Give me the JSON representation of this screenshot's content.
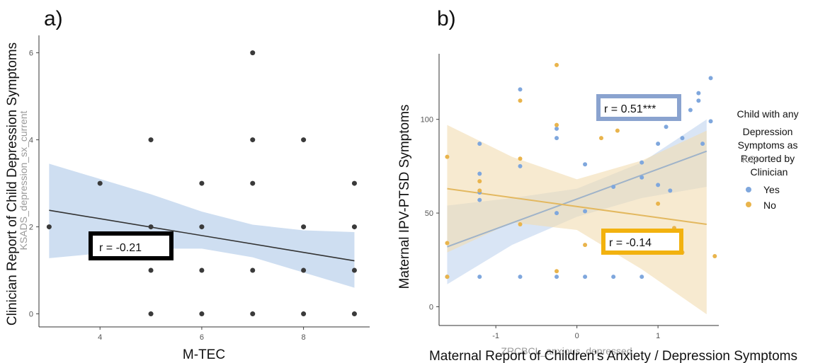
{
  "colors": {
    "panel_a_point": "#3a3a3a",
    "panel_a_band": "#c6d8ef",
    "panel_a_line": "#333333",
    "yes": "#7fa7dd",
    "yes_band": "#bfd3ef",
    "yes_line": "#9fb3c9",
    "no": "#e9b44c",
    "no_band": "#f1dcb0",
    "no_line": "#e3b85f",
    "box_a": "#000000",
    "box_blue": "#8aa3cf",
    "box_orange": "#f2b20f"
  },
  "chart_data": [
    {
      "type": "scatter",
      "panel_label": "a)",
      "xlabel": "M-TEC",
      "ylabel": "Clinician Report of Child Depression Symptoms",
      "ghost_ylabel": "KSADS_depression_sx_current",
      "xlim": [
        2.8,
        9.3
      ],
      "ylim": [
        -0.3,
        6.4
      ],
      "xticks": [
        "4",
        "6",
        "8"
      ],
      "yticks": [
        "0",
        "2",
        "4",
        "6"
      ],
      "grid": false,
      "points": [
        [
          3,
          2
        ],
        [
          4,
          3
        ],
        [
          5,
          0
        ],
        [
          5,
          1
        ],
        [
          5,
          2
        ],
        [
          5,
          4
        ],
        [
          6,
          0
        ],
        [
          6,
          1
        ],
        [
          6,
          2
        ],
        [
          6,
          3
        ],
        [
          7,
          0
        ],
        [
          7,
          1
        ],
        [
          7,
          3
        ],
        [
          7,
          4
        ],
        [
          7,
          6
        ],
        [
          8,
          0
        ],
        [
          8,
          1
        ],
        [
          8,
          2
        ],
        [
          8,
          4
        ],
        [
          9,
          0
        ],
        [
          9,
          1
        ],
        [
          9,
          2
        ],
        [
          9,
          3
        ]
      ],
      "fit_line": [
        [
          3,
          2.38
        ],
        [
          9,
          1.22
        ]
      ],
      "band_upper": [
        [
          3,
          3.45
        ],
        [
          5,
          2.75
        ],
        [
          6,
          2.35
        ],
        [
          7,
          2.05
        ],
        [
          8,
          1.92
        ],
        [
          9,
          1.88
        ]
      ],
      "band_lower": [
        [
          3,
          1.28
        ],
        [
          5,
          1.5
        ],
        [
          6,
          1.5
        ],
        [
          7,
          1.3
        ],
        [
          8,
          0.95
        ],
        [
          9,
          0.6
        ]
      ],
      "annotation": "r = -0.21"
    },
    {
      "type": "scatter",
      "panel_label": "b)",
      "xlabel": "Maternal Report of Children's Anxiety / Depression Symptoms",
      "ghost_xlabel": "ZRCBCL_anxious_depressed",
      "ylabel": "Maternal IPV-PTSD Symptoms",
      "xlim": [
        -1.7,
        1.75
      ],
      "ylim": [
        -10,
        135
      ],
      "xticks": [
        "-1",
        "0",
        "1"
      ],
      "yticks": [
        "0",
        "50",
        "100"
      ],
      "grid": false,
      "legend": {
        "title": "Child with any Depression Symptoms as Reported by Clinician",
        "ghost_title": "KSI",
        "position": "right"
      },
      "series": [
        {
          "name": "Yes",
          "points": [
            [
              -1.6,
              16
            ],
            [
              -1.2,
              16
            ],
            [
              -1.2,
              71
            ],
            [
              -1.2,
              87
            ],
            [
              -1.2,
              61
            ],
            [
              -1.2,
              57
            ],
            [
              -0.7,
              75
            ],
            [
              -0.7,
              116
            ],
            [
              -0.7,
              16
            ],
            [
              -0.25,
              95
            ],
            [
              -0.25,
              90
            ],
            [
              -0.25,
              50
            ],
            [
              -0.25,
              16
            ],
            [
              0.1,
              76
            ],
            [
              0.1,
              51
            ],
            [
              0.1,
              16
            ],
            [
              0.45,
              64
            ],
            [
              0.45,
              16
            ],
            [
              0.8,
              77
            ],
            [
              0.8,
              69
            ],
            [
              0.8,
              16
            ],
            [
              1.0,
              87
            ],
            [
              1.0,
              65
            ],
            [
              1.1,
              96
            ],
            [
              1.15,
              62
            ],
            [
              1.3,
              90
            ],
            [
              1.4,
              105
            ],
            [
              1.5,
              110
            ],
            [
              1.5,
              114
            ],
            [
              1.55,
              87
            ],
            [
              1.65,
              122
            ],
            [
              1.65,
              99
            ]
          ],
          "fit_line": [
            [
              -1.6,
              32
            ],
            [
              1.6,
              83
            ]
          ],
          "band_upper": [
            [
              -1.6,
              54
            ],
            [
              -0.8,
              58
            ],
            [
              0.0,
              63
            ],
            [
              0.8,
              77
            ],
            [
              1.6,
              100
            ]
          ],
          "band_lower": [
            [
              -1.6,
              12
            ],
            [
              -0.8,
              33
            ],
            [
              0.0,
              48
            ],
            [
              0.8,
              58
            ],
            [
              1.6,
              64
            ]
          ]
        },
        {
          "name": "No",
          "points": [
            [
              -1.6,
              80
            ],
            [
              -1.6,
              34
            ],
            [
              -1.6,
              16
            ],
            [
              -1.2,
              67
            ],
            [
              -1.2,
              62
            ],
            [
              -0.7,
              110
            ],
            [
              -0.7,
              79
            ],
            [
              -0.7,
              44
            ],
            [
              -0.25,
              129
            ],
            [
              -0.25,
              97
            ],
            [
              -0.25,
              19
            ],
            [
              0.1,
              33
            ],
            [
              0.3,
              90
            ],
            [
              0.5,
              94
            ],
            [
              1.0,
              55
            ],
            [
              1.2,
              42
            ],
            [
              1.3,
              29
            ],
            [
              1.7,
              27
            ]
          ],
          "fit_line": [
            [
              -1.6,
              63
            ],
            [
              1.6,
              44
            ]
          ],
          "band_upper": [
            [
              -1.6,
              97
            ],
            [
              -0.8,
              80
            ],
            [
              0.0,
              68
            ],
            [
              0.8,
              78
            ],
            [
              1.6,
              94
            ]
          ],
          "band_lower": [
            [
              -1.6,
              29
            ],
            [
              -0.8,
              45
            ],
            [
              0.0,
              41
            ],
            [
              0.8,
              20
            ],
            [
              1.6,
              -4
            ]
          ]
        }
      ],
      "annotations": [
        "r = 0.51***",
        "r =  -0.14"
      ]
    }
  ]
}
